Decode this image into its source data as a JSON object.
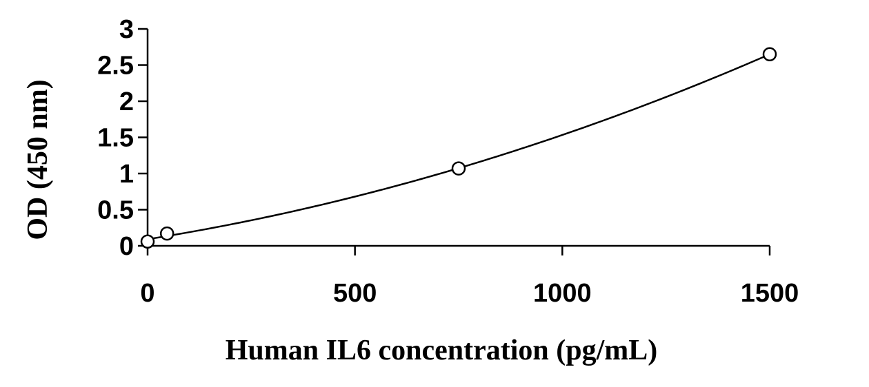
{
  "chart_data": {
    "type": "scatter",
    "title": "",
    "xlabel": "Human IL6 concentration (pg/mL)",
    "ylabel": "OD (450 nm)",
    "xlim": [
      0,
      1500
    ],
    "ylim": [
      0,
      3
    ],
    "x_ticks": [
      "0",
      "500",
      "1000",
      "1500"
    ],
    "y_ticks": [
      "0",
      "0.5",
      "1",
      "1.5",
      "2",
      "2.5",
      "3"
    ],
    "grid": false,
    "legend": "none",
    "series": [
      {
        "points": [
          {
            "x": 0,
            "y": 0.06
          },
          {
            "x": 46.9,
            "y": 0.17
          },
          {
            "x": 750,
            "y": 1.07
          },
          {
            "x": 1500,
            "y": 2.65
          }
        ],
        "marker": "open-circle",
        "fit_curve": "smooth"
      }
    ]
  }
}
